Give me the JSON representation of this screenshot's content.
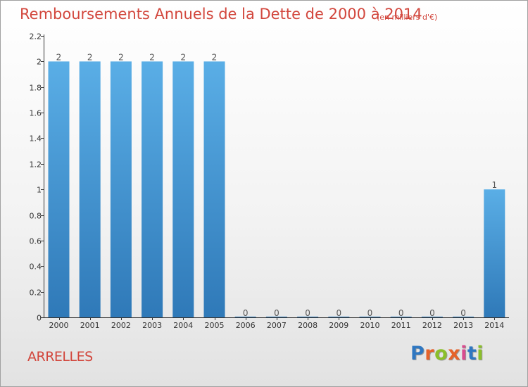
{
  "header": {
    "title": "Remboursements Annuels de la Dette de 2000 à 2014",
    "unit": "(en milliers d'€)"
  },
  "footer": {
    "commune": "ARRELLES",
    "logo_text": "Proxiti"
  },
  "colors": {
    "accent": "#d2463c",
    "bar_top": "#5aaee6",
    "bar_bottom": "#2f79b8",
    "logo_letters": [
      "#2f77c1",
      "#e5622a",
      "#8bbf2a",
      "#e5622a",
      "#d94b8e",
      "#2f77c1",
      "#8bbf2a"
    ]
  },
  "chart_data": {
    "type": "bar",
    "categories": [
      "2000",
      "2001",
      "2002",
      "2003",
      "2004",
      "2005",
      "2006",
      "2007",
      "2008",
      "2009",
      "2010",
      "2011",
      "2012",
      "2013",
      "2014"
    ],
    "values": [
      2,
      2,
      2,
      2,
      2,
      2,
      0,
      0,
      0,
      0,
      0,
      0,
      0,
      0,
      1
    ],
    "data_labels": [
      "2",
      "2",
      "2",
      "2",
      "2",
      "2",
      "0",
      "0",
      "0",
      "0",
      "0",
      "0",
      "0",
      "0",
      "1"
    ],
    "ylim": [
      0,
      2.2
    ],
    "yticks": [
      0,
      0.2,
      0.4,
      0.6,
      0.8,
      1,
      1.2,
      1.4,
      1.6,
      1.8,
      2,
      2.2
    ],
    "ytick_labels": [
      "0",
      "0.2",
      "0.4",
      "0.6",
      "0.8",
      "1",
      "1.2",
      "1.4",
      "1.6",
      "1.8",
      "2",
      "2.2"
    ],
    "grid": false,
    "legend": "none"
  }
}
